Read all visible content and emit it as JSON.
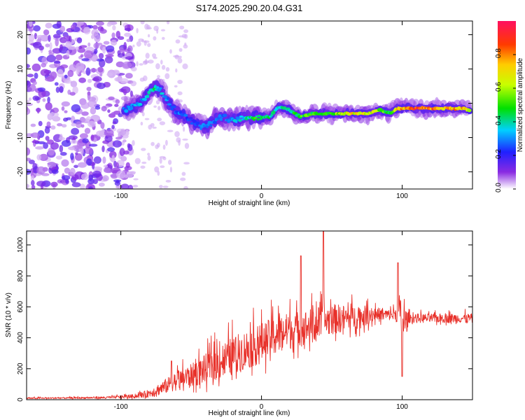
{
  "title": "S174.2025.290.20.04.G31",
  "chart_data": [
    {
      "type": "heatmap",
      "name": "spectrogram",
      "xlabel": "Height of straight line (km)",
      "ylabel": "Frequency (Hz)",
      "xlim": [
        -167,
        150
      ],
      "ylim": [
        -25,
        24
      ],
      "x_ticks": [
        -100,
        0,
        100
      ],
      "x_tick_labels": [
        "-100",
        "0",
        "100"
      ],
      "y_ticks": [
        -20,
        -10,
        0,
        10,
        20
      ],
      "y_tick_labels": [
        "-20",
        "-10",
        "0",
        "10",
        "20"
      ],
      "noise_region_x": [
        -167,
        -92
      ],
      "ridge": {
        "x": [
          -98,
          -90,
          -82,
          -76,
          -70,
          -64,
          -58,
          -50,
          -42,
          -36,
          -28,
          -20,
          -12,
          -6,
          0,
          6,
          12,
          20,
          28,
          36,
          44,
          52,
          60,
          68,
          76,
          84,
          92,
          96,
          104,
          112,
          120,
          128,
          136,
          144,
          148
        ],
        "y": [
          -2,
          -1,
          2,
          5,
          3,
          -1,
          -3,
          -5,
          -7,
          -6,
          -4,
          -5,
          -4,
          -4,
          -4,
          -4,
          -1,
          -2,
          -4,
          -3,
          -3,
          -3,
          -3,
          -3,
          -3,
          -2,
          -3,
          -1.5,
          -1.5,
          -1.5,
          -1.5,
          -1.5,
          -1.5,
          -1.5,
          -2
        ],
        "amplitude": [
          0.3,
          0.35,
          0.35,
          0.45,
          0.35,
          0.3,
          0.3,
          0.25,
          0.3,
          0.3,
          0.3,
          0.35,
          0.4,
          0.5,
          0.55,
          0.45,
          0.45,
          0.45,
          0.55,
          0.55,
          0.55,
          0.6,
          0.75,
          0.75,
          0.75,
          0.65,
          0.5,
          0.85,
          0.9,
          0.9,
          0.9,
          0.85,
          0.85,
          0.8,
          0.6
        ]
      }
    },
    {
      "type": "colorbar",
      "name": "amplitude-colorbar",
      "label": "Normalized spectral amplitude",
      "range": [
        0.0,
        1.0
      ],
      "ticks": [
        0.0,
        0.2,
        0.4,
        0.6,
        0.8
      ],
      "tick_labels": [
        "0.0",
        "0.2",
        "0.4",
        "0.6",
        "0.8"
      ]
    },
    {
      "type": "line",
      "name": "snr",
      "xlabel": "Height of straight line (km)",
      "ylabel": "SNR (10 * v/v)",
      "xlim": [
        -167,
        150
      ],
      "ylim": [
        0,
        1090
      ],
      "x_ticks": [
        -100,
        0,
        100
      ],
      "x_tick_labels": [
        "-100",
        "0",
        "100"
      ],
      "y_ticks": [
        0,
        200,
        400,
        600,
        800,
        1000
      ],
      "y_tick_labels": [
        "0",
        "200",
        "400",
        "600",
        "800",
        "1000"
      ],
      "color": "#e8312a",
      "envelope": {
        "x": [
          -167,
          -140,
          -110,
          -90,
          -80,
          -70,
          -60,
          -50,
          -40,
          -30,
          -20,
          -10,
          0,
          10,
          20,
          30,
          40,
          50,
          60,
          70,
          80,
          90,
          95,
          98,
          100,
          105,
          120,
          140,
          150
        ],
        "base": [
          8,
          10,
          12,
          20,
          35,
          70,
          110,
          140,
          180,
          220,
          260,
          300,
          340,
          390,
          420,
          440,
          470,
          500,
          510,
          520,
          540,
          540,
          540,
          560,
          450,
          520,
          520,
          520,
          520
        ],
        "spread": [
          10,
          10,
          15,
          25,
          50,
          90,
          120,
          150,
          190,
          230,
          250,
          260,
          260,
          250,
          240,
          230,
          220,
          200,
          170,
          150,
          100,
          70,
          80,
          200,
          300,
          60,
          60,
          60,
          60
        ]
      },
      "peaks": [
        {
          "x": 44,
          "y": 1090
        },
        {
          "x": 28,
          "y": 930
        },
        {
          "x": 97,
          "y": 885
        },
        {
          "x": 100,
          "y": 150
        },
        {
          "x": -64,
          "y": 250
        }
      ]
    }
  ]
}
